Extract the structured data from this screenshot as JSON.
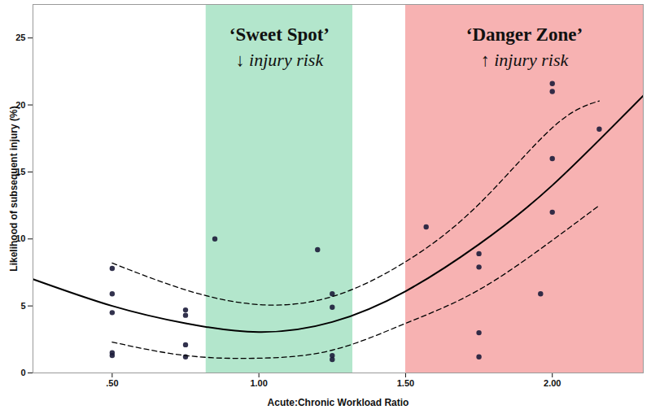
{
  "chart_data": {
    "type": "scatter",
    "x_label": "Acute:Chronic Workload Ratio",
    "y_label": "Likelihood of subsequent injury (%)",
    "xlim": [
      0.23,
      2.31
    ],
    "ylim": [
      0,
      27.5
    ],
    "xticks": [
      {
        "value": 0.5,
        "label": ".50"
      },
      {
        "value": 1.0,
        "label": "1.00"
      },
      {
        "value": 1.5,
        "label": "1.50"
      },
      {
        "value": 2.0,
        "label": "2.00"
      }
    ],
    "yticks": [
      0,
      5,
      10,
      15,
      20,
      25
    ],
    "grid": false,
    "zones": [
      {
        "label": "‘Sweet Spot’",
        "sublabel": "↓ injury risk",
        "x": [
          0.82,
          1.32
        ],
        "color": "#b3e6cc"
      },
      {
        "label": "‘Danger Zone’",
        "sublabel": "↑ injury risk",
        "x": [
          1.5,
          2.31
        ],
        "color": "#f7b2b2"
      }
    ],
    "series": [
      {
        "type": "scatter",
        "marker": "circle",
        "color": "#1c1c3a",
        "x": [
          0.5,
          0.5,
          0.5,
          0.5,
          0.5,
          0.75,
          0.75,
          0.75,
          0.75,
          0.85,
          1.2,
          1.25,
          1.25,
          1.25,
          1.25,
          1.57,
          1.75,
          1.75,
          1.75,
          1.75,
          1.96,
          2.0,
          2.0,
          2.0,
          2.0,
          2.16
        ],
        "values": [
          7.8,
          5.9,
          4.5,
          1.5,
          1.3,
          4.7,
          4.3,
          2.1,
          1.2,
          10.0,
          9.2,
          5.9,
          4.9,
          1.3,
          1.0,
          10.9,
          8.9,
          7.9,
          3.0,
          1.2,
          5.9,
          21.6,
          21.0,
          16.0,
          12.0,
          18.2
        ]
      },
      {
        "type": "line",
        "line_style": "solid",
        "color": "#000000",
        "x": [
          0.23,
          0.5,
          0.75,
          1.0,
          1.25,
          1.5,
          1.75,
          2.0,
          2.31
        ],
        "values": [
          7.0,
          5.0,
          3.7,
          3.05,
          3.8,
          6.1,
          9.6,
          14.0,
          20.7
        ]
      },
      {
        "type": "line",
        "line_style": "dashed",
        "color": "#000000",
        "x": [
          0.5,
          0.75,
          1.0,
          1.25,
          1.5,
          1.75,
          2.0,
          2.16
        ],
        "values": [
          8.2,
          6.2,
          5.1,
          5.7,
          8.3,
          12.6,
          18.3,
          20.3
        ]
      },
      {
        "type": "line",
        "line_style": "dashed",
        "color": "#000000",
        "x": [
          0.5,
          0.75,
          1.0,
          1.25,
          1.5,
          1.75,
          2.0,
          2.16
        ],
        "values": [
          2.3,
          1.3,
          1.1,
          1.7,
          3.7,
          6.2,
          9.9,
          12.5
        ]
      }
    ]
  }
}
